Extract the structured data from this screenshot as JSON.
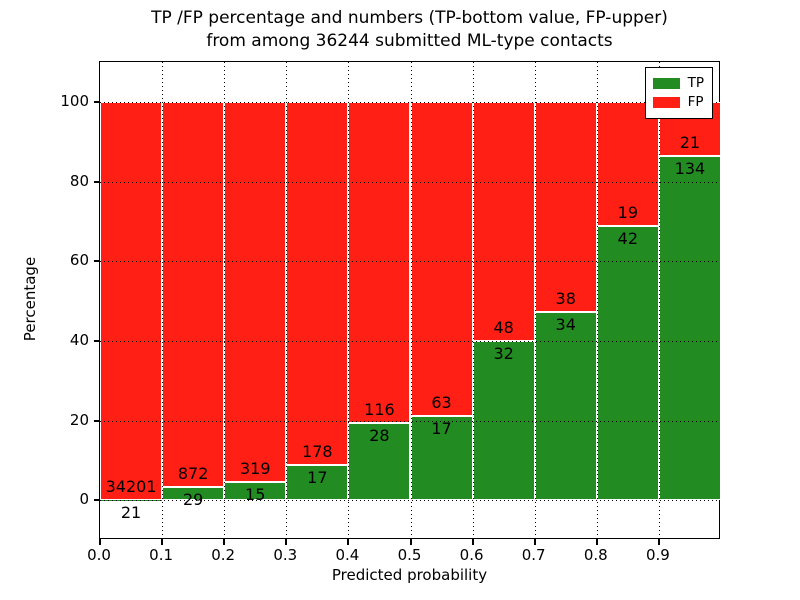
{
  "figure": {
    "kind": "matplotlib-stacked-bar-plot"
  },
  "chart_data": {
    "type": "bar",
    "stacked": true,
    "normalized": "percent",
    "title": "TP /FP percentage and numbers (TP-bottom value, FP-upper) from among 36244 submitted ML-type contacts",
    "title_lines": [
      "TP /FP percentage and numbers (TP-bottom value, FP-upper)",
      "from among 36244 submitted ML-type contacts"
    ],
    "xlabel": "Predicted probability",
    "ylabel": "Percentage",
    "total_contacts": 36244,
    "bin_width": 0.1,
    "categories": [
      "0.0",
      "0.1",
      "0.2",
      "0.3",
      "0.4",
      "0.5",
      "0.6",
      "0.7",
      "0.8",
      "0.9"
    ],
    "series": [
      {
        "name": "TP",
        "color": "#228b22",
        "values": [
          21,
          29,
          15,
          17,
          28,
          17,
          32,
          34,
          42,
          134
        ]
      },
      {
        "name": "FP",
        "color": "#ff1f15",
        "values": [
          34201,
          872,
          319,
          178,
          116,
          63,
          48,
          38,
          19,
          21
        ]
      }
    ],
    "tp_percent_of_bin": [
      0.06,
      3.22,
      4.49,
      8.72,
      19.44,
      21.25,
      40.0,
      47.22,
      68.85,
      86.45
    ],
    "xticks": [
      "0.0",
      "0.1",
      "0.2",
      "0.3",
      "0.4",
      "0.5",
      "0.6",
      "0.7",
      "0.8",
      "0.9"
    ],
    "yticks": [
      0,
      20,
      40,
      60,
      80,
      100
    ],
    "xlim": [
      0.0,
      1.0
    ],
    "ylim": [
      -10,
      110
    ],
    "grid": "dotted-both-axes",
    "legend_position": "upper right",
    "bar_edge_color": "#ffffff"
  },
  "legend": {
    "items": [
      {
        "label": "TP",
        "color": "#228b22"
      },
      {
        "label": "FP",
        "color": "#ff1f15"
      }
    ]
  }
}
